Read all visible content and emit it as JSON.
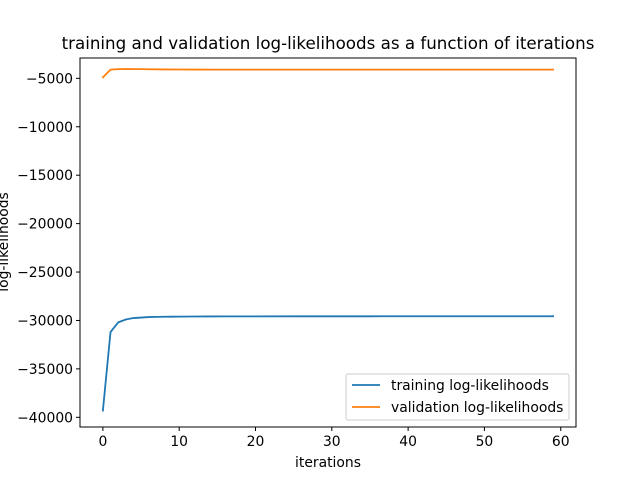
{
  "chart_data": {
    "type": "line",
    "title": "training and validation log-likelihoods as a function of iterations",
    "xlabel": "iterations",
    "ylabel": "log-likelihoods",
    "xlim": [
      -3,
      62
    ],
    "ylim": [
      -41000,
      -2900
    ],
    "xticks": [
      0,
      10,
      20,
      30,
      40,
      50,
      60
    ],
    "yticks": [
      -40000,
      -35000,
      -30000,
      -25000,
      -20000,
      -15000,
      -10000,
      -5000
    ],
    "grid": false,
    "legend_position": "lower right",
    "series": [
      {
        "name": "training log-likelihoods",
        "color": "#1f77b4",
        "x": [
          0,
          1,
          2,
          3,
          4,
          5,
          6,
          7,
          8,
          9,
          10,
          12,
          14,
          16,
          18,
          20,
          25,
          30,
          35,
          40,
          45,
          50,
          55,
          59
        ],
        "y": [
          -39300,
          -31200,
          -30200,
          -29900,
          -29750,
          -29700,
          -29650,
          -29630,
          -29620,
          -29610,
          -29600,
          -29590,
          -29585,
          -29580,
          -29578,
          -29575,
          -29572,
          -29570,
          -29569,
          -29568,
          -29568,
          -29568,
          -29568,
          -29568
        ]
      },
      {
        "name": "validation log-likelihoods",
        "color": "#ff7f0e",
        "x": [
          0,
          1,
          2,
          3,
          4,
          5,
          6,
          8,
          10,
          12,
          15,
          20,
          30,
          40,
          50,
          59
        ],
        "y": [
          -4900,
          -4100,
          -4050,
          -4040,
          -4045,
          -4050,
          -4060,
          -4080,
          -4090,
          -4095,
          -4100,
          -4100,
          -4100,
          -4100,
          -4100,
          -4100
        ]
      }
    ]
  }
}
